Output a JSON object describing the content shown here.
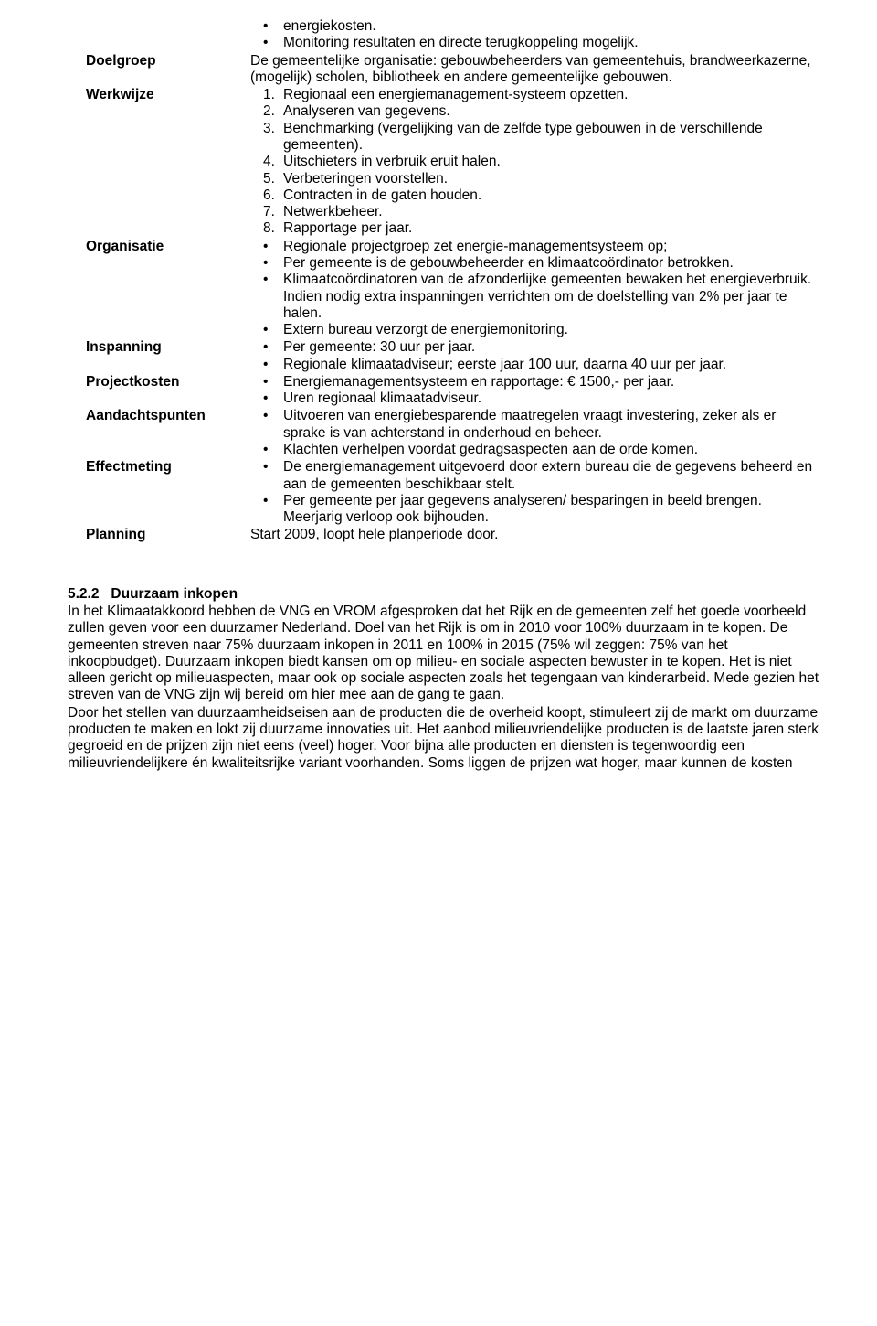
{
  "rows": {
    "intro_bullets": [
      "energiekosten.",
      "Monitoring resultaten en directe terugkoppeling mogelijk."
    ],
    "doelgroep": {
      "label": "Doelgroep",
      "text": "De gemeentelijke organisatie: gebouwbeheerders van gemeentehuis, brandweerkazerne, (mogelijk) scholen, bibliotheek en andere gemeentelijke gebouwen."
    },
    "werkwijze": {
      "label": "Werkwijze",
      "items": [
        "Regionaal een energiemanagement-systeem opzetten.",
        "Analyseren van gegevens.",
        "Benchmarking (vergelijking van de zelfde type gebouwen in de verschillende gemeenten).",
        "Uitschieters in verbruik eruit halen.",
        "Verbeteringen voorstellen.",
        "Contracten in de gaten houden.",
        "Netwerkbeheer.",
        "Rapportage per jaar."
      ]
    },
    "organisatie": {
      "label": "Organisatie",
      "items": [
        "Regionale projectgroep zet energie-managementsysteem op;",
        "Per gemeente is de gebouwbeheerder en klimaatcoördinator betrokken.",
        "Klimaatcoördinatoren van de afzonderlijke gemeenten bewaken het energieverbruik. Indien nodig extra inspanningen verrichten om de doelstelling van 2% per jaar te halen.",
        "Extern bureau verzorgt de energiemonitoring."
      ]
    },
    "inspanning": {
      "label": "Inspanning",
      "items": [
        "Per gemeente: 30 uur per jaar.",
        "Regionale klimaatadviseur; eerste jaar 100 uur, daarna 40 uur per jaar."
      ]
    },
    "projectkosten": {
      "label": "Projectkosten",
      "items": [
        "Energiemanagementsysteem en rapportage: € 1500,- per jaar.",
        "Uren regionaal klimaatadviseur."
      ]
    },
    "aandachtspunten": {
      "label": "Aandachtspunten",
      "items": [
        "Uitvoeren van energiebesparende maatregelen vraagt investering, zeker als er sprake is van achterstand in onderhoud en beheer.",
        "Klachten verhelpen voordat gedragsaspecten aan de orde komen."
      ]
    },
    "effectmeting": {
      "label": "Effectmeting",
      "items": [
        "De energiemanagement uitgevoerd door extern bureau die de gegevens beheerd en aan de gemeenten beschikbaar stelt.",
        "Per gemeente per jaar gegevens analyseren/ besparingen in beeld brengen. Meerjarig verloop ook bijhouden."
      ]
    },
    "planning": {
      "label": "Planning",
      "text": "Start 2009, loopt hele planperiode door."
    }
  },
  "section": {
    "number": "5.2.2",
    "title": "Duurzaam inkopen",
    "paragraphs": [
      "In het Klimaatakkoord hebben de VNG en VROM afgesproken dat het Rijk en de gemeenten zelf het goede voorbeeld zullen geven voor een duurzamer Nederland. Doel van het Rijk is om in 2010 voor 100% duurzaam in te kopen. De gemeenten streven naar 75% duurzaam inkopen in 2011 en 100% in 2015 (75% wil zeggen: 75% van het inkoopbudget). Duurzaam inkopen biedt kansen om op milieu- en sociale aspecten bewuster in te kopen. Het is niet alleen gericht op milieuaspecten, maar ook op sociale aspecten zoals het tegengaan van kinderarbeid. Mede gezien het streven van de VNG zijn wij bereid om hier mee aan de gang te gaan.",
      "Door het stellen van duurzaamheidseisen aan de producten die de overheid koopt, stimuleert zij de markt om duurzame producten te maken en lokt zij duurzame innovaties uit. Het aanbod milieuvriendelijke producten is de laatste jaren sterk gegroeid en de prijzen zijn niet eens (veel) hoger. Voor bijna alle producten en diensten is tegenwoordig een milieuvriendelijkere én kwaliteitsrijke variant voorhanden. Soms liggen de prijzen wat hoger, maar kunnen de kosten"
    ]
  },
  "style": {
    "font_family": "Arial",
    "font_size_pt": 12,
    "text_color": "#000000",
    "background_color": "#ffffff"
  }
}
